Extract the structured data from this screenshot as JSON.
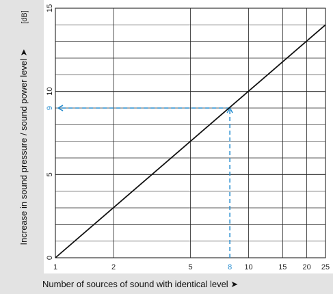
{
  "chart_data": {
    "type": "line",
    "title": "",
    "xlabel": "Number of sources of sound with identical level ➤",
    "ylabel": "Increase in sound pressure / sound power level ➤",
    "yunit": "[dB]",
    "x_scale": "log",
    "xlim": [
      1,
      25
    ],
    "ylim": [
      0,
      15
    ],
    "x_ticks": [
      1,
      2,
      5,
      8,
      10,
      15,
      20,
      25
    ],
    "x_highlight": 8,
    "y_ticks": [
      0,
      5,
      9,
      10,
      15
    ],
    "y_highlight": 9,
    "grid": true,
    "series": [
      {
        "x": [
          1,
          25
        ],
        "y": [
          0,
          14
        ]
      }
    ],
    "annotation": {
      "x": 8,
      "y": 9,
      "style": "dashed",
      "color": "#2a8fd0"
    },
    "colors": {
      "line": "#111111",
      "highlight": "#2a8fd0",
      "label_panel": "#e3e3e3",
      "grid": "#222222"
    }
  }
}
